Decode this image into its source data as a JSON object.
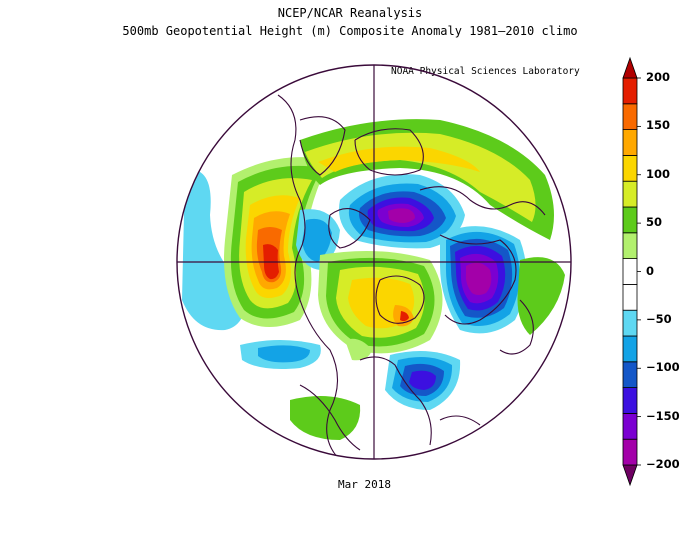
{
  "title_line1": "NCEP/NCAR Reanalysis",
  "title_line2": "500mb Geopotential Height (m) Composite Anomaly 1981–2010 climo",
  "credit": "NOAA Physical Sciences Laboratory",
  "date_label": "Mar 2018",
  "colorbar": {
    "min": -200,
    "max": 200,
    "tick_labels": [
      "200",
      "150",
      "100",
      "50",
      "0",
      "−50",
      "−100",
      "−150",
      "−200"
    ],
    "colors": [
      "#6e0062",
      "#a300a9",
      "#7b00d1",
      "#3c10e0",
      "#1457c8",
      "#13a3e6",
      "#5fd8f2",
      "#ffffff",
      "#ffffff",
      "#b2f06e",
      "#5dcb1b",
      "#d6ec27",
      "#fbd600",
      "#ffa800",
      "#f96a00",
      "#e41e00",
      "#b00000"
    ]
  },
  "map": {
    "projection": "polar stereographic (north)",
    "variable": "500mb geopotential height anomaly",
    "units": "m"
  }
}
